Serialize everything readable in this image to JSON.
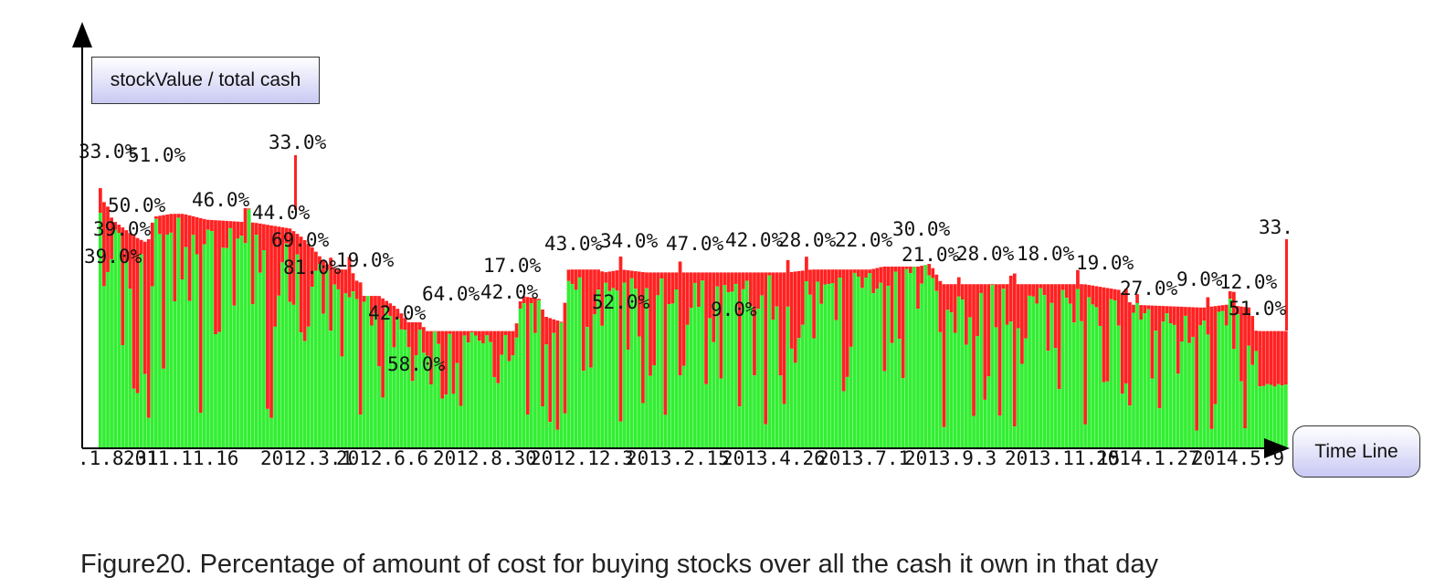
{
  "chart_data": {
    "type": "bar",
    "stacked": true,
    "series": [
      {
        "color": "#33ee33"
      },
      {
        "color": "#ff2222"
      }
    ],
    "x_tick_labels": [
      ".1.8.31",
      "2011.11.16",
      "2012.3.1",
      "2012.6.6",
      "2012.8.30",
      "2012.12.3",
      "2013.2.15",
      "2013.4.26",
      "2013.7.1",
      "2013.9.3",
      "2013.11.15",
      "2014.1.27",
      "2014.5.9"
    ],
    "totals_profile": [
      [
        0,
        0.84
      ],
      [
        0.005,
        0.84
      ],
      [
        0.01,
        0.78
      ],
      [
        0.02,
        0.75
      ],
      [
        0.03,
        0.72
      ],
      [
        0.04,
        0.7
      ],
      [
        0.045,
        0.79
      ],
      [
        0.06,
        0.8
      ],
      [
        0.07,
        0.8
      ],
      [
        0.09,
        0.78
      ],
      [
        0.13,
        0.77
      ],
      [
        0.16,
        0.75
      ],
      [
        0.17,
        0.72
      ],
      [
        0.18,
        0.68
      ],
      [
        0.19,
        0.63
      ],
      [
        0.2,
        0.61
      ],
      [
        0.21,
        0.61
      ],
      [
        0.215,
        0.59
      ],
      [
        0.22,
        0.52
      ],
      [
        0.235,
        0.52
      ],
      [
        0.25,
        0.48
      ],
      [
        0.26,
        0.43
      ],
      [
        0.27,
        0.43
      ],
      [
        0.275,
        0.4
      ],
      [
        0.29,
        0.4
      ],
      [
        0.35,
        0.4
      ],
      [
        0.355,
        0.52
      ],
      [
        0.37,
        0.51
      ],
      [
        0.375,
        0.45
      ],
      [
        0.39,
        0.43
      ],
      [
        0.395,
        0.61
      ],
      [
        0.42,
        0.61
      ],
      [
        0.425,
        0.6
      ],
      [
        0.44,
        0.61
      ],
      [
        0.46,
        0.6
      ],
      [
        0.5,
        0.6
      ],
      [
        0.58,
        0.6
      ],
      [
        0.6,
        0.61
      ],
      [
        0.65,
        0.61
      ],
      [
        0.66,
        0.62
      ],
      [
        0.69,
        0.62
      ],
      [
        0.7,
        0.63
      ],
      [
        0.71,
        0.56
      ],
      [
        0.73,
        0.56
      ],
      [
        0.83,
        0.56
      ],
      [
        0.86,
        0.54
      ],
      [
        0.87,
        0.49
      ],
      [
        0.93,
        0.48
      ],
      [
        0.95,
        0.49
      ],
      [
        0.97,
        0.48
      ],
      [
        0.975,
        0.4
      ],
      [
        1,
        0.4
      ]
    ],
    "annotations": [
      "33.0%",
      "51.0%",
      "50.0%",
      "39.0%",
      "39.0%",
      "46.0%",
      "33.0%",
      "44.0%",
      "69.0%",
      "81.0%",
      "19.0%",
      "42.0%",
      "58.0%",
      "64.0%",
      "42.0%",
      "17.0%",
      "43.0%",
      "34.0%",
      "52.0%",
      "47.0%",
      "42.0%",
      "28.0%",
      "9.0%",
      "22.0%",
      "30.0%",
      "21.0%",
      "28.0%",
      "18.0%",
      "19.0%",
      "27.0%",
      "9.0%",
      "12.0%",
      "51.0%",
      "33."
    ],
    "ylabel": "stockValue / total cash",
    "xlabel": "Time Line",
    "grid": false,
    "legend": "none"
  },
  "caption": "Figure20. Percentage of amount of cost for buying stocks over all the cash it own in that day"
}
